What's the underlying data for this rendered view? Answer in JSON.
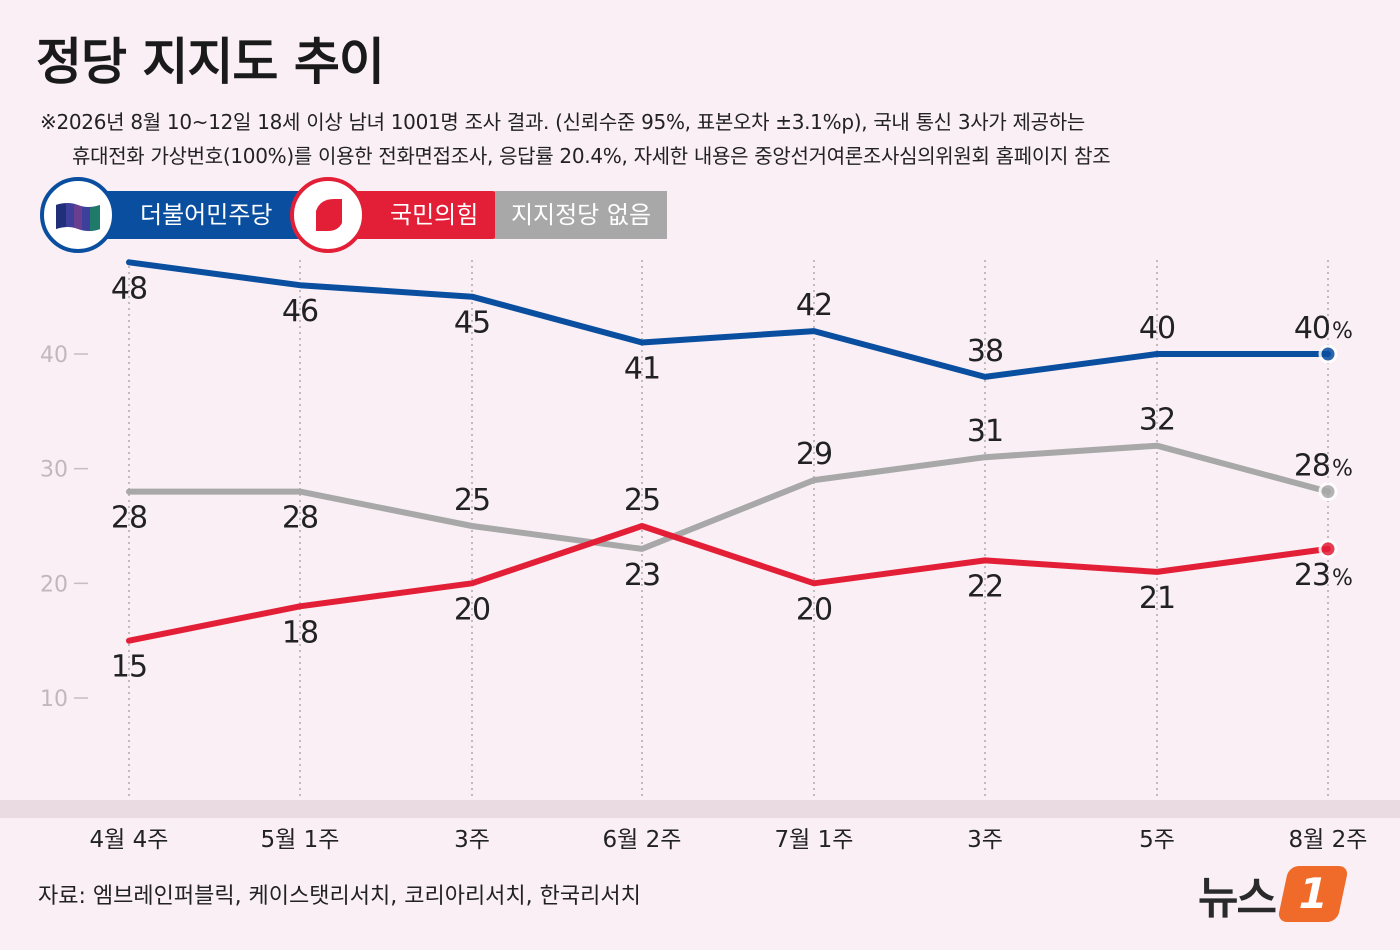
{
  "title": "정당 지지도 추이",
  "notes": [
    "※2026년 8월 10~12일 18세 이상 남녀 1001명 조사 결과. (신뢰수준 95%, 표본오차 ±3.1%p), 국내 통신 3사가 제공하는",
    "휴대전화 가상번호(100%)를 이용한 전화면접조사, 응답률 20.4%, 자세한 내용은 중앙선거여론조사심의위원회 홈페이지 참조"
  ],
  "legend": [
    {
      "label": "더불어민주당",
      "color": "#0a4ea0",
      "icon": "democratic-party-logo-icon"
    },
    {
      "label": "국민의힘",
      "color": "#e31f37",
      "icon": "people-power-party-logo-icon"
    },
    {
      "label": "지지정당 없음",
      "color": "#a8a8a8"
    }
  ],
  "source": "자료: 엠브레인퍼블릭, 케이스탯리서치, 코리아리서치, 한국리서치",
  "brand": {
    "text": "뉴스",
    "mark": "1"
  },
  "chart_data": {
    "type": "line",
    "categories": [
      "4월 4주",
      "5월 1주",
      "3주",
      "6월 2주",
      "7월 1주",
      "3주",
      "5주",
      "8월 2주"
    ],
    "yticks": [
      10,
      20,
      30,
      40
    ],
    "ylim": [
      0,
      49
    ],
    "unit": "%",
    "series": [
      {
        "name": "더불어민주당",
        "color": "#0a4ea0",
        "values": [
          48,
          46,
          45,
          41,
          42,
          38,
          40,
          40
        ]
      },
      {
        "name": "국민의힘",
        "color": "#e31f37",
        "values": [
          15,
          18,
          20,
          25,
          20,
          22,
          21,
          23
        ]
      },
      {
        "name": "지지정당 없음",
        "color": "#a8a8a8",
        "values": [
          28,
          28,
          25,
          23,
          29,
          31,
          32,
          28
        ]
      }
    ]
  }
}
